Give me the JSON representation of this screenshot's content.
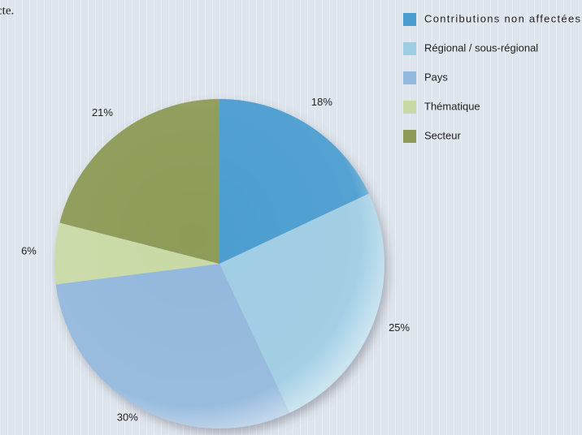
{
  "chart_data": {
    "type": "pie",
    "annotation": "cte.",
    "categories": [
      "Contributions non affectées",
      "Régional / sous-régional",
      "Pays",
      "Thématique",
      "Secteur"
    ],
    "values": [
      18,
      25,
      30,
      6,
      21
    ],
    "value_labels": [
      "18%",
      "25%",
      "30%",
      "6%",
      "21%"
    ],
    "colors": [
      "#4b9dd0",
      "#9fcde4",
      "#93b8dc",
      "#c9daa6",
      "#8d9b58"
    ],
    "legend": "top-right"
  }
}
